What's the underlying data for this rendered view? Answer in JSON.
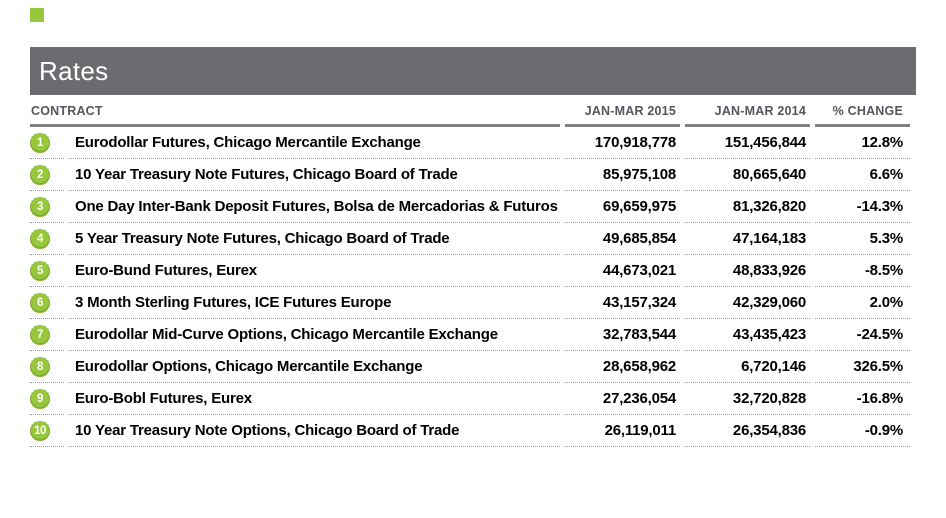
{
  "colors": {
    "accent_green": "#97C83C",
    "title_bar_gray": "#6B6C6F",
    "header_text_gray": "#54565B"
  },
  "section": {
    "title": "Rates"
  },
  "table": {
    "columns": {
      "contract": "CONTRACT",
      "y2015": "JAN-MAR 2015",
      "y2014": "JAN-MAR 2014",
      "change": "% CHANGE"
    },
    "rows": [
      {
        "rank": "1",
        "contract": "Eurodollar Futures, Chicago Mercantile Exchange",
        "y2015": "170,918,778",
        "y2014": "151,456,844",
        "change": "12.8%"
      },
      {
        "rank": "2",
        "contract": "10 Year Treasury Note Futures, Chicago Board of Trade",
        "y2015": "85,975,108",
        "y2014": "80,665,640",
        "change": "6.6%"
      },
      {
        "rank": "3",
        "contract": "One Day Inter-Bank Deposit Futures, Bolsa de Mercadorias & Futuros",
        "y2015": "69,659,975",
        "y2014": "81,326,820",
        "change": "-14.3%"
      },
      {
        "rank": "4",
        "contract": "5 Year Treasury Note Futures, Chicago Board of Trade",
        "y2015": "49,685,854",
        "y2014": "47,164,183",
        "change": "5.3%"
      },
      {
        "rank": "5",
        "contract": "Euro-Bund Futures, Eurex",
        "y2015": "44,673,021",
        "y2014": "48,833,926",
        "change": "-8.5%"
      },
      {
        "rank": "6",
        "contract": "3 Month Sterling Futures, ICE Futures Europe",
        "y2015": "43,157,324",
        "y2014": "42,329,060",
        "change": "2.0%"
      },
      {
        "rank": "7",
        "contract": "Eurodollar Mid-Curve Options, Chicago Mercantile Exchange",
        "y2015": "32,783,544",
        "y2014": "43,435,423",
        "change": "-24.5%"
      },
      {
        "rank": "8",
        "contract": "Eurodollar Options, Chicago Mercantile Exchange",
        "y2015": "28,658,962",
        "y2014": "6,720,146",
        "change": "326.5%"
      },
      {
        "rank": "9",
        "contract": "Euro-Bobl Futures, Eurex",
        "y2015": "27,236,054",
        "y2014": "32,720,828",
        "change": "-16.8%"
      },
      {
        "rank": "10",
        "contract": "10 Year Treasury Note Options, Chicago Board of Trade",
        "y2015": "26,119,011",
        "y2014": "26,354,836",
        "change": "-0.9%"
      }
    ]
  },
  "chart_data": {
    "type": "table",
    "title": "Rates",
    "columns": [
      "CONTRACT",
      "JAN-MAR 2015",
      "JAN-MAR 2014",
      "% CHANGE"
    ],
    "rows": [
      {
        "rank": 1,
        "contract": "Eurodollar Futures, Chicago Mercantile Exchange",
        "jan_mar_2015": 170918778,
        "jan_mar_2014": 151456844,
        "pct_change": 12.8
      },
      {
        "rank": 2,
        "contract": "10 Year Treasury Note Futures, Chicago Board of Trade",
        "jan_mar_2015": 85975108,
        "jan_mar_2014": 80665640,
        "pct_change": 6.6
      },
      {
        "rank": 3,
        "contract": "One Day Inter-Bank Deposit Futures, Bolsa de Mercadorias & Futuros",
        "jan_mar_2015": 69659975,
        "jan_mar_2014": 81326820,
        "pct_change": -14.3
      },
      {
        "rank": 4,
        "contract": "5 Year Treasury Note Futures, Chicago Board of Trade",
        "jan_mar_2015": 49685854,
        "jan_mar_2014": 47164183,
        "pct_change": 5.3
      },
      {
        "rank": 5,
        "contract": "Euro-Bund Futures, Eurex",
        "jan_mar_2015": 44673021,
        "jan_mar_2014": 48833926,
        "pct_change": -8.5
      },
      {
        "rank": 6,
        "contract": "3 Month Sterling Futures, ICE Futures Europe",
        "jan_mar_2015": 43157324,
        "jan_mar_2014": 42329060,
        "pct_change": 2.0
      },
      {
        "rank": 7,
        "contract": "Eurodollar Mid-Curve Options, Chicago Mercantile Exchange",
        "jan_mar_2015": 32783544,
        "jan_mar_2014": 43435423,
        "pct_change": -24.5
      },
      {
        "rank": 8,
        "contract": "Eurodollar Options, Chicago Mercantile Exchange",
        "jan_mar_2015": 28658962,
        "jan_mar_2014": 6720146,
        "pct_change": 326.5
      },
      {
        "rank": 9,
        "contract": "Euro-Bobl Futures, Eurex",
        "jan_mar_2015": 27236054,
        "jan_mar_2014": 32720828,
        "pct_change": -16.8
      },
      {
        "rank": 10,
        "contract": "10 Year Treasury Note Options, Chicago Board of Trade",
        "jan_mar_2015": 26119011,
        "jan_mar_2014": 26354836,
        "pct_change": -0.9
      }
    ]
  }
}
